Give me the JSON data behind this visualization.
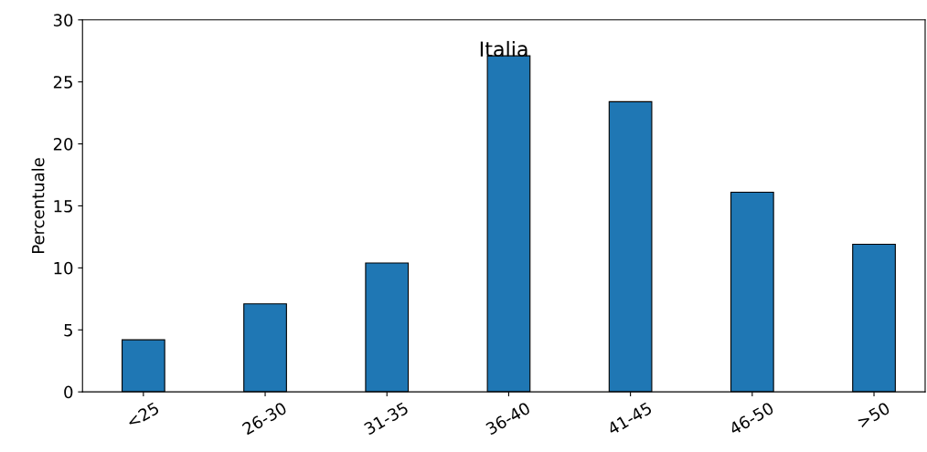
{
  "chart_data": {
    "type": "bar",
    "title": "Italia",
    "ylabel": "Percentuale",
    "categories": [
      "<25",
      "26-30",
      "31-35",
      "36-40",
      "41-45",
      "46-50",
      ">50"
    ],
    "values": [
      4.2,
      7.1,
      10.4,
      27.1,
      23.4,
      16.1,
      11.9
    ],
    "color": "#1f77b4",
    "ylim": [
      0,
      30
    ],
    "yticks": [
      0,
      5,
      10,
      15,
      20,
      25,
      30
    ],
    "grid": false,
    "legend": false
  }
}
